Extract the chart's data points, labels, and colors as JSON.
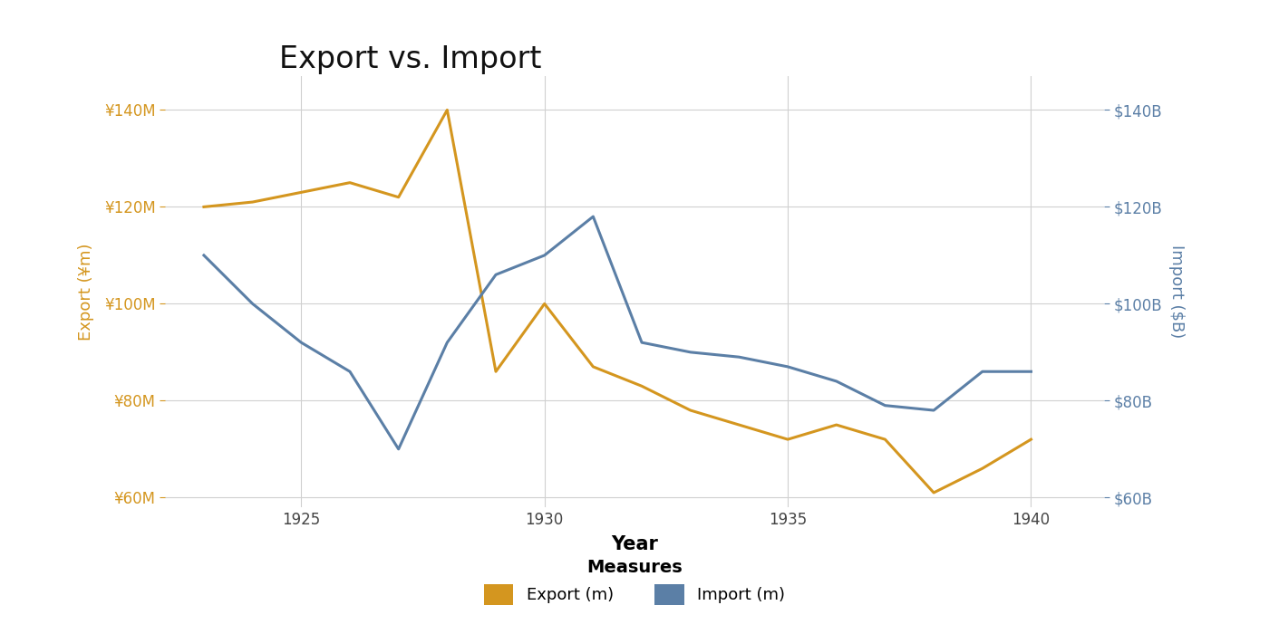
{
  "title": "Export vs. Import",
  "xlabel": "Year",
  "ylabel_left": "Export (¥m)",
  "ylabel_right": "Import ($B)",
  "export_years": [
    1923,
    1924,
    1925,
    1926,
    1927,
    1928,
    1929,
    1930,
    1931,
    1932,
    1933,
    1934,
    1935,
    1936,
    1937,
    1938,
    1939,
    1940
  ],
  "export_values": [
    120,
    121,
    123,
    125,
    122,
    140,
    86,
    100,
    87,
    83,
    78,
    75,
    72,
    75,
    72,
    61,
    66,
    72
  ],
  "import_years": [
    1923,
    1924,
    1925,
    1926,
    1927,
    1928,
    1929,
    1930,
    1931,
    1932,
    1933,
    1934,
    1935,
    1936,
    1937,
    1938,
    1939,
    1940
  ],
  "import_values": [
    110,
    100,
    92,
    86,
    70,
    92,
    106,
    110,
    118,
    92,
    90,
    89,
    87,
    84,
    79,
    78,
    86,
    86
  ],
  "export_color": "#D4961F",
  "import_color": "#5B7FA6",
  "ylim": [
    58,
    147
  ],
  "xlim_left": 1922.2,
  "xlim_right": 1941.5,
  "xticks": [
    1925,
    1930,
    1935,
    1940
  ],
  "yticks": [
    60,
    80,
    100,
    120,
    140
  ],
  "grid_color": "#D0D0D0",
  "bg_color": "#FFFFFF",
  "legend_title": "Measures",
  "legend_export": "Export (m)",
  "legend_import": "Import (m)",
  "title_fontsize": 24,
  "axis_label_fontsize": 13,
  "tick_fontsize": 12,
  "legend_fontsize": 13,
  "legend_title_fontsize": 14
}
